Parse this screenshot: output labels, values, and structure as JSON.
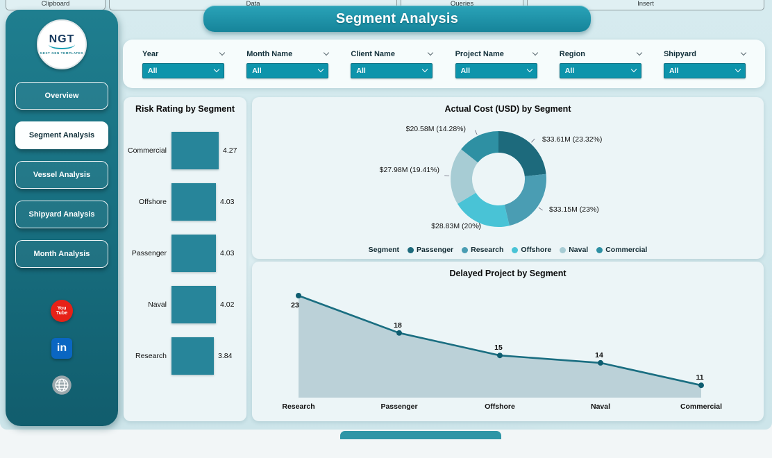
{
  "ribbon": {
    "groups": [
      "Clipboard",
      "Data",
      "Queries",
      "Insert"
    ]
  },
  "sidebar": {
    "logo": {
      "text": "NGT",
      "subtext": "NEXT GEN TEMPLATES"
    },
    "nav": [
      {
        "label": "Overview",
        "active": false
      },
      {
        "label": "Segment Analysis",
        "active": true
      },
      {
        "label": "Vessel Analysis",
        "active": false
      },
      {
        "label": "Shipyard Analysis",
        "active": false
      },
      {
        "label": "Month Analysis",
        "active": false
      }
    ],
    "social": [
      {
        "name": "youtube",
        "lines": [
          "You",
          "Tube"
        ],
        "color": "#e62117"
      },
      {
        "name": "linkedin",
        "label": "in",
        "color": "#0a66c2"
      },
      {
        "name": "website-globe",
        "color": "#9ba8ad"
      }
    ]
  },
  "header": {
    "title": "Segment Analysis"
  },
  "filters": [
    {
      "label": "Year",
      "value": "All"
    },
    {
      "label": "Month Name",
      "value": "All"
    },
    {
      "label": "Client Name",
      "value": "All"
    },
    {
      "label": "Project Name",
      "value": "All"
    },
    {
      "label": "Region",
      "value": "All"
    },
    {
      "label": "Shipyard",
      "value": "All"
    }
  ],
  "theme": {
    "sidebar": "#1b7485",
    "accent": "#0d94ab",
    "banner": "#1b8fa3"
  },
  "chart_data": [
    {
      "type": "bar",
      "title": "Risk Rating by Segment",
      "orientation": "horizontal",
      "categories": [
        "Commercial",
        "Offshore",
        "Passenger",
        "Naval",
        "Research"
      ],
      "values": [
        4.27,
        4.03,
        4.03,
        4.02,
        3.84
      ],
      "bar_color": "#27859a",
      "xlim": [
        0,
        4.27
      ]
    },
    {
      "type": "pie",
      "title": "Actual Cost (USD) by Segment",
      "legend_title": "Segment",
      "legend_position": "bottom",
      "series": [
        {
          "name": "Passenger",
          "value_musd": 33.61,
          "pct": 23.32,
          "label": "$33.61M (23.32%)",
          "color": "#1d6a7c"
        },
        {
          "name": "Research",
          "value_musd": 33.15,
          "pct": 23.0,
          "label": "$33.15M (23%)",
          "color": "#4a9db3"
        },
        {
          "name": "Offshore",
          "value_musd": 28.83,
          "pct": 20.0,
          "label": "$28.83M (20%)",
          "color": "#49c3d6"
        },
        {
          "name": "Naval",
          "value_musd": 27.98,
          "pct": 19.41,
          "label": "$27.98M (19.41%)",
          "color": "#a7ccd4"
        },
        {
          "name": "Commercial",
          "value_musd": 20.58,
          "pct": 14.28,
          "label": "$20.58M (14.28%)",
          "color": "#2e90a3"
        }
      ]
    },
    {
      "type": "area",
      "title": "Delayed Project by Segment",
      "categories": [
        "Research",
        "Passenger",
        "Offshore",
        "Naval",
        "Commercial"
      ],
      "values": [
        23,
        18,
        15,
        14,
        11
      ],
      "line_color": "#1a6e81",
      "dot_color": "#0e5d70",
      "area_color": "#b8cfd6",
      "grid": false
    }
  ]
}
